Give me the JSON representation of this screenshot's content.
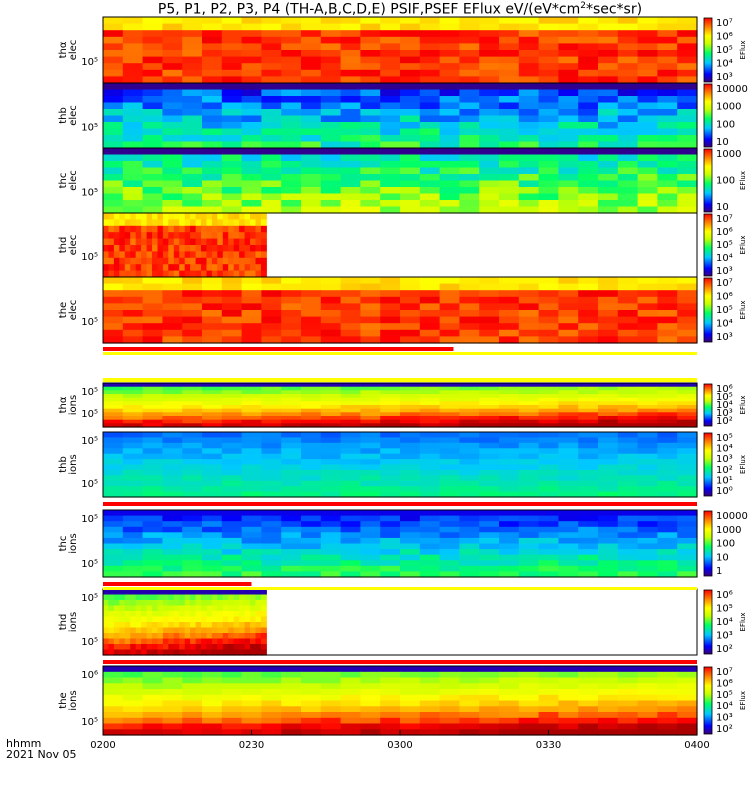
{
  "title": "P5, P1, P2, P3, P4 (TH-A,B,C,D,E) PSIF,PSEF EFlux eV/(eV*cm",
  "title_sup": "2",
  "title_tail": "*sec*sr)",
  "time_labels": {
    "ylabel_line1": "hhmm",
    "ylabel_line2": "2021 Nov 05"
  },
  "colors": {
    "flag_red": "#ff0000",
    "flag_yellow": "#ffff00",
    "flag_black": "#000000"
  },
  "chart_data": {
    "type": "heatmap",
    "x_ticks": [
      "0200",
      "0230",
      "0300",
      "0330",
      "0400"
    ],
    "x_range": [
      "0200",
      "0400"
    ],
    "panels": [
      {
        "label_top": "thα",
        "label_bottom": "elec",
        "ytick": "10⁵",
        "colorbar_ticks": [
          "10⁷",
          "10⁶",
          "10⁵",
          "10⁴",
          "10³"
        ],
        "colorbar_label": "EFlux",
        "coverage_end": "0400",
        "level": "high"
      },
      {
        "label_top": "thb",
        "label_bottom": "elec",
        "ytick": "10⁵",
        "colorbar_ticks": [
          "10000",
          "1000",
          "100",
          "10"
        ],
        "colorbar_label": "",
        "coverage_end": "0400",
        "level": "low"
      },
      {
        "label_top": "thc",
        "label_bottom": "elec",
        "ytick": "10⁵",
        "colorbar_ticks": [
          "1000",
          "100",
          "10"
        ],
        "colorbar_label": "EFlux",
        "coverage_end": "0400",
        "level": "low2"
      },
      {
        "label_top": "thd",
        "label_bottom": "elec",
        "ytick": "10⁵",
        "colorbar_ticks": [
          "10⁷",
          "10⁶",
          "10⁵",
          "10⁴",
          "10³"
        ],
        "colorbar_label": "EFlux",
        "coverage_end": "0233",
        "level": "high"
      },
      {
        "label_top": "the",
        "label_bottom": "elec",
        "ytick": "10⁵",
        "colorbar_ticks": [
          "10⁷",
          "10⁶",
          "10⁵",
          "10⁴",
          "10³"
        ],
        "colorbar_label": "EFlux",
        "coverage_end": "0400",
        "level": "high"
      },
      {
        "label_top": "thα",
        "label_bottom": "ions",
        "ytick_top": "10⁵",
        "ytick_bottom": "10⁵",
        "colorbar_ticks": [
          "10⁶",
          "10⁵",
          "10⁴",
          "10³",
          "10²"
        ],
        "colorbar_label": "EFlux",
        "coverage_end": "0400",
        "level": "high"
      },
      {
        "label_top": "thb",
        "label_bottom": "ions",
        "ytick_top": "10⁵",
        "ytick_bottom": "10⁵",
        "colorbar_ticks": [
          "10⁵",
          "10⁴",
          "10³",
          "10²",
          "10¹",
          "10⁰"
        ],
        "colorbar_label": "EFlux",
        "coverage_end": "0400",
        "level": "mid"
      },
      {
        "label_top": "thc",
        "label_bottom": "ions",
        "ytick_top": "10⁵",
        "ytick_bottom": "10⁵",
        "colorbar_ticks": [
          "10000",
          "1000",
          "100",
          "10",
          "1"
        ],
        "colorbar_label": "",
        "coverage_end": "0400",
        "level": "mid2"
      },
      {
        "label_top": "thd",
        "label_bottom": "ions",
        "ytick_top": "10⁵",
        "ytick_bottom": "10⁵",
        "colorbar_ticks": [
          "10⁶",
          "10⁵",
          "10⁴",
          "10³",
          "10²"
        ],
        "colorbar_label": "EFlux",
        "coverage_end": "0233",
        "level": "high"
      },
      {
        "label_top": "the",
        "label_bottom": "ions",
        "ytick_top": "10⁶",
        "ytick_bottom": "10⁵",
        "colorbar_ticks": [
          "10⁷",
          "10⁶",
          "10⁵",
          "10⁴",
          "10³",
          "10²"
        ],
        "colorbar_label": "EFlux",
        "coverage_end": "0400",
        "level": "high"
      }
    ]
  }
}
